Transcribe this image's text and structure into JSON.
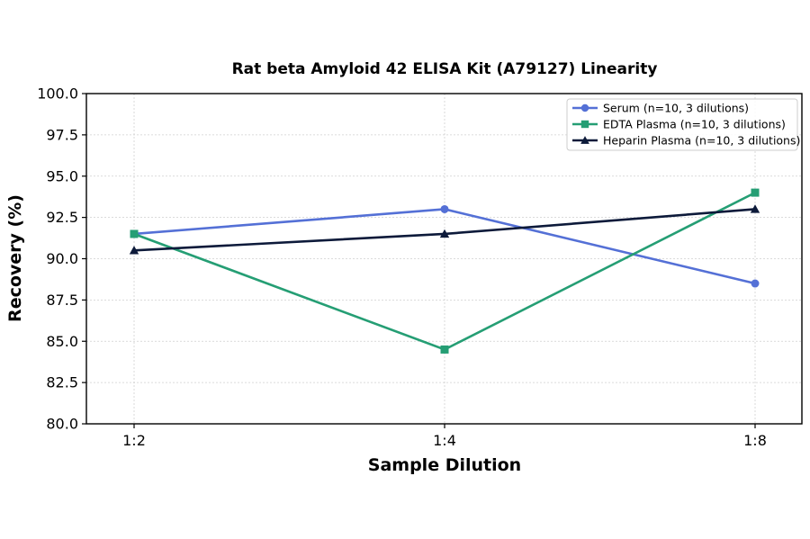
{
  "chart_data": {
    "type": "line",
    "title": "Rat beta Amyloid 42 ELISA Kit (A79127) Linearity",
    "xlabel": "Sample Dilution",
    "ylabel": "Recovery (%)",
    "categories": [
      "1:2",
      "1:4",
      "1:8"
    ],
    "ylim": [
      80.0,
      100.0
    ],
    "yticks": [
      "80.0",
      "82.5",
      "85.0",
      "87.5",
      "90.0",
      "92.5",
      "95.0",
      "97.5",
      "100.0"
    ],
    "grid": true,
    "legend_position": "top-right",
    "series": [
      {
        "name": "Serum (n=10, 3 dilutions)",
        "values": [
          91.5,
          93.0,
          88.5
        ],
        "color": "#5470d6",
        "marker": "circle"
      },
      {
        "name": "EDTA Plasma (n=10, 3 dilutions)",
        "values": [
          91.5,
          84.5,
          94.0
        ],
        "color": "#259e74",
        "marker": "square"
      },
      {
        "name": "Heparin Plasma (n=10, 3 dilutions)",
        "values": [
          90.5,
          91.5,
          93.0
        ],
        "color": "#0d1a3a",
        "marker": "triangle"
      }
    ]
  }
}
